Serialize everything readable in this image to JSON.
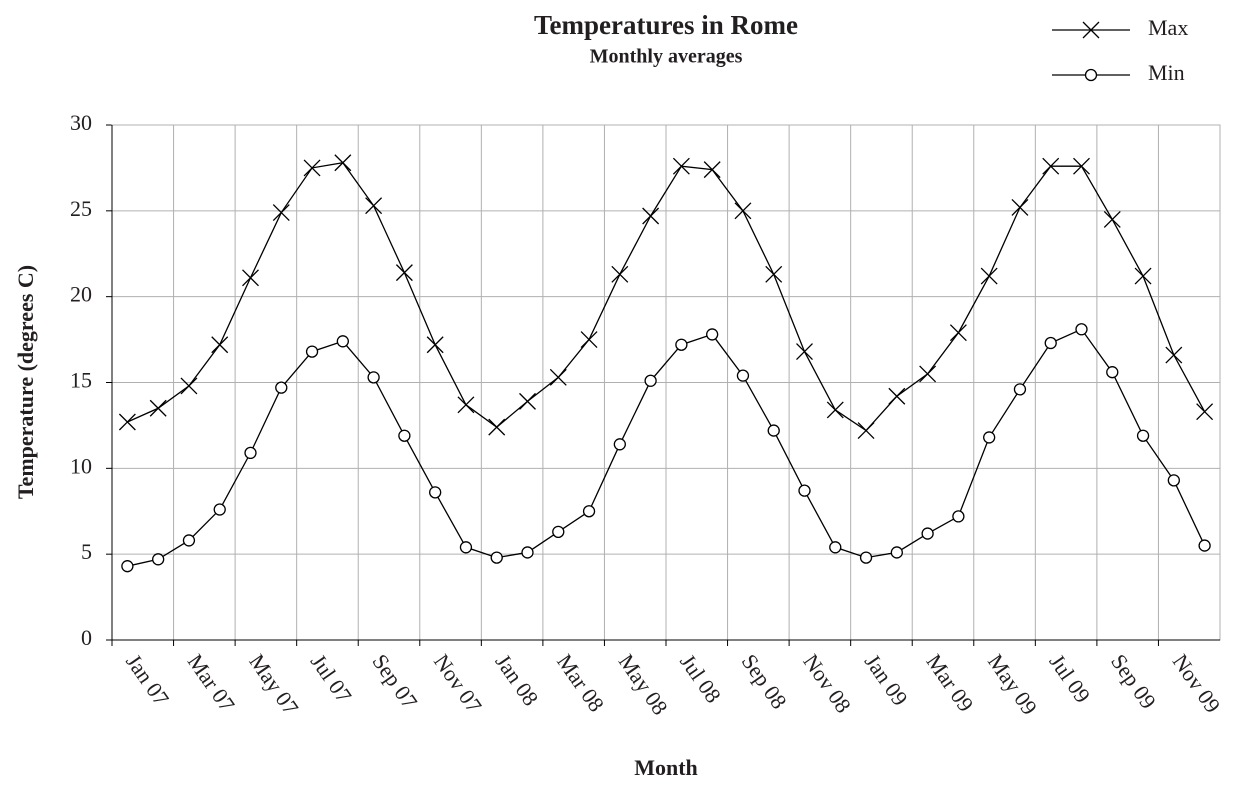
{
  "chart_data": {
    "type": "line",
    "title": "Temperatures in Rome",
    "subtitle": "Monthly averages",
    "x_label": "Month",
    "y_label": "Temperature (degrees C)",
    "categories": [
      "Jan 07",
      null,
      "Mar 07",
      null,
      "May 07",
      null,
      "Jul 07",
      null,
      "Sep 07",
      null,
      "Nov 07",
      null,
      "Jan 08",
      null,
      "Mar 08",
      null,
      "May 08",
      null,
      "Jul 08",
      null,
      "Sep 08",
      null,
      "Nov 08",
      null,
      "Jan 09",
      null,
      "Mar 09",
      null,
      "May 09",
      null,
      "Jul 09",
      null,
      "Sep 09",
      null,
      "Nov 09",
      null
    ],
    "series": [
      {
        "name": "Max",
        "color": "#000000",
        "marker": "x",
        "values": [
          12.7,
          13.5,
          14.8,
          17.2,
          21.1,
          24.9,
          27.5,
          27.8,
          25.3,
          21.4,
          17.2,
          13.7,
          12.4,
          13.9,
          15.3,
          17.5,
          21.3,
          24.7,
          27.6,
          27.4,
          25.0,
          21.3,
          16.8,
          13.4,
          12.2,
          14.2,
          15.5,
          17.9,
          21.2,
          25.2,
          27.6,
          27.6,
          24.5,
          21.2,
          16.6,
          13.3
        ]
      },
      {
        "name": "Min",
        "color": "#000000",
        "marker": "o",
        "values": [
          4.3,
          4.7,
          5.8,
          7.6,
          10.9,
          14.7,
          16.8,
          17.4,
          15.3,
          11.9,
          8.6,
          5.4,
          4.8,
          5.1,
          6.3,
          7.5,
          11.4,
          15.1,
          17.2,
          17.8,
          15.4,
          12.2,
          8.7,
          5.4,
          4.8,
          5.1,
          6.2,
          7.2,
          11.8,
          14.6,
          17.3,
          18.1,
          15.6,
          11.9,
          9.3,
          5.5
        ]
      }
    ],
    "ylim": [
      0,
      30
    ],
    "yticks": [
      0,
      5,
      10,
      15,
      20,
      25,
      30
    ],
    "grid": true,
    "legend": "top-right"
  }
}
